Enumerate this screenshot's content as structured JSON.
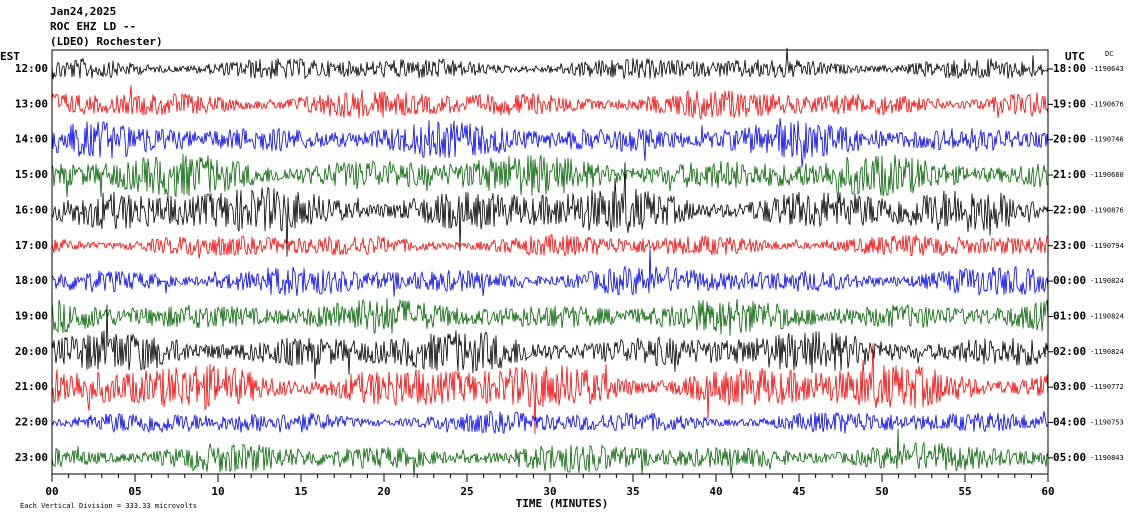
{
  "header": {
    "date": "Jan24,2025",
    "station": "ROC EHZ LD --",
    "network": "(LDEO) Rochester)"
  },
  "left_axis": {
    "title": "EST",
    "labels": [
      "12:00",
      "13:00",
      "14:00",
      "15:00",
      "16:00",
      "17:00",
      "18:00",
      "19:00",
      "20:00",
      "21:00",
      "22:00",
      "23:00"
    ]
  },
  "right_axis": {
    "title": "UTC",
    "dc_title": "DC",
    "labels": [
      "18:00",
      "19:00",
      "20:00",
      "21:00",
      "22:00",
      "23:00",
      "00:00",
      "01:00",
      "02:00",
      "03:00",
      "04:00",
      "05:00"
    ],
    "dc_values": [
      "-1190643",
      "-1190676",
      "-1190746",
      "-1190680",
      "-1190876",
      "-1190794",
      "-1190824",
      "-1190824",
      "-1190824",
      "-1190772",
      "-1190753",
      "-1190843"
    ]
  },
  "x_axis": {
    "ticks": [
      "00",
      "05",
      "10",
      "15",
      "20",
      "25",
      "30",
      "35",
      "40",
      "45",
      "50",
      "55",
      "60"
    ],
    "label": "TIME (MINUTES)"
  },
  "footer": "Each Vertical Division =  333.33 microvolts"
}
